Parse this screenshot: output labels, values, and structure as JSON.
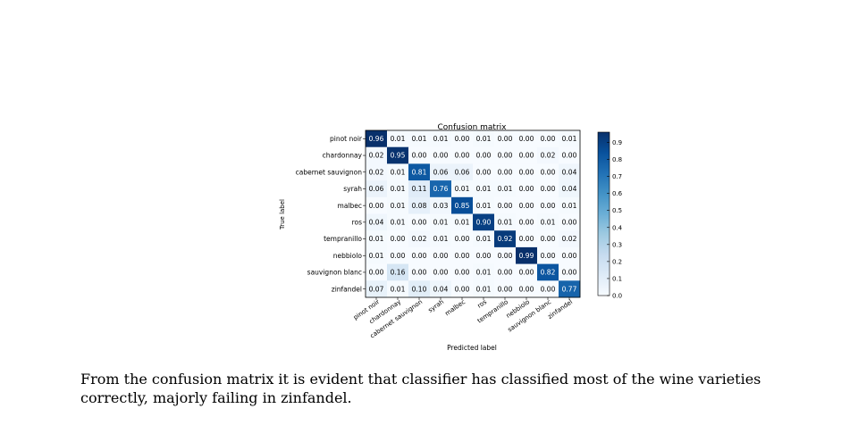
{
  "chart_data": {
    "type": "heatmap",
    "title": "Confusion matrix",
    "xlabel": "Predicted label",
    "ylabel": "True label",
    "row_labels": [
      "pinot noir",
      "chardonnay",
      "cabernet sauvignon",
      "syrah",
      "malbec",
      "ros",
      "tempranillo",
      "nebbiolo",
      "sauvignon blanc",
      "zinfandel"
    ],
    "col_labels": [
      "pinot noir",
      "chardonnay",
      "cabernet sauvignon",
      "syrah",
      "malbec",
      "ros",
      "tempranillo",
      "nebbiolo",
      "sauvignon blanc",
      "zinfandel"
    ],
    "values": [
      [
        0.96,
        0.01,
        0.01,
        0.01,
        0.0,
        0.01,
        0.0,
        0.0,
        0.0,
        0.01
      ],
      [
        0.02,
        0.95,
        0.0,
        0.0,
        0.0,
        0.0,
        0.0,
        0.0,
        0.02,
        0.0
      ],
      [
        0.02,
        0.01,
        0.81,
        0.06,
        0.06,
        0.0,
        0.0,
        0.0,
        0.0,
        0.04
      ],
      [
        0.06,
        0.01,
        0.11,
        0.76,
        0.01,
        0.01,
        0.01,
        0.0,
        0.0,
        0.04
      ],
      [
        0.0,
        0.01,
        0.08,
        0.03,
        0.85,
        0.01,
        0.0,
        0.0,
        0.0,
        0.01
      ],
      [
        0.04,
        0.01,
        0.0,
        0.01,
        0.01,
        0.9,
        0.01,
        0.0,
        0.01,
        0.0
      ],
      [
        0.01,
        0.0,
        0.02,
        0.01,
        0.0,
        0.01,
        0.92,
        0.0,
        0.0,
        0.02
      ],
      [
        0.01,
        0.0,
        0.0,
        0.0,
        0.0,
        0.0,
        0.0,
        0.99,
        0.0,
        0.0
      ],
      [
        0.0,
        0.16,
        0.0,
        0.0,
        0.0,
        0.01,
        0.0,
        0.0,
        0.82,
        0.0
      ],
      [
        0.07,
        0.01,
        0.1,
        0.04,
        0.0,
        0.01,
        0.0,
        0.0,
        0.0,
        0.77
      ]
    ],
    "colorbar": {
      "colormap": "Blues",
      "range": [
        0.0,
        0.96
      ],
      "ticks": [
        "0.0",
        "0.1",
        "0.2",
        "0.3",
        "0.4",
        "0.5",
        "0.6",
        "0.7",
        "0.8",
        "0.9"
      ]
    }
  },
  "caption": "From the confusion matrix it is evident that classifier has classified most of the wine varieties correctly, majorly failing in zinfandel."
}
